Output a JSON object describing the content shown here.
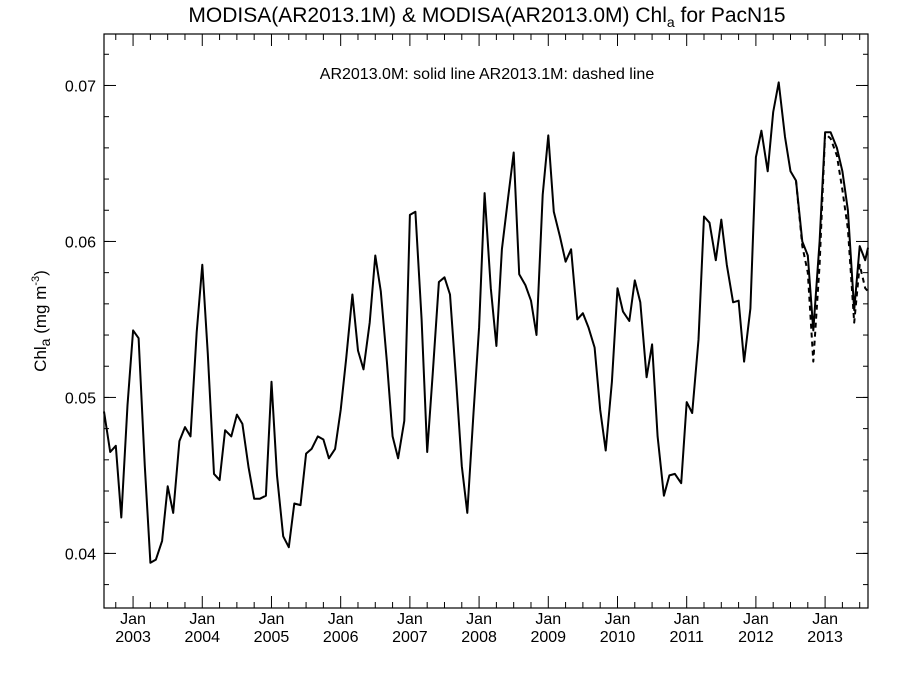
{
  "chart_data": {
    "type": "line",
    "title": {
      "main": "MODISA(AR2013.1M) & MODISA(AR2013.0M)  Chl",
      "sub": "a",
      "tail": " for PacN15"
    },
    "annotation": "AR2013.0M: solid line   AR2013.1M: dashed line",
    "ylabel": {
      "main": "Chl",
      "sub": "a",
      "unit_open": " (mg m",
      "sup": "-3",
      "unit_close": ")"
    },
    "xlim": [
      2002.58,
      2013.62
    ],
    "ylim": [
      0.0365,
      0.0733
    ],
    "x_ticks": [
      {
        "x": 2003,
        "month": "Jan",
        "year": "2003"
      },
      {
        "x": 2004,
        "month": "Jan",
        "year": "2004"
      },
      {
        "x": 2005,
        "month": "Jan",
        "year": "2005"
      },
      {
        "x": 2006,
        "month": "Jan",
        "year": "2006"
      },
      {
        "x": 2007,
        "month": "Jan",
        "year": "2007"
      },
      {
        "x": 2008,
        "month": "Jan",
        "year": "2008"
      },
      {
        "x": 2009,
        "month": "Jan",
        "year": "2009"
      },
      {
        "x": 2010,
        "month": "Jan",
        "year": "2010"
      },
      {
        "x": 2011,
        "month": "Jan",
        "year": "2011"
      },
      {
        "x": 2012,
        "month": "Jan",
        "year": "2012"
      },
      {
        "x": 2013,
        "month": "Jan",
        "year": "2013"
      }
    ],
    "y_ticks": [
      {
        "value": 0.04,
        "label": "0.04"
      },
      {
        "value": 0.05,
        "label": "0.05"
      },
      {
        "value": 0.06,
        "label": "0.06"
      },
      {
        "value": 0.07,
        "label": "0.07"
      }
    ],
    "series": [
      {
        "style": "solid",
        "color": "#000000",
        "points": [
          [
            2002.58,
            0.0491
          ],
          [
            2002.67,
            0.0465
          ],
          [
            2002.75,
            0.0469
          ],
          [
            2002.83,
            0.0423
          ],
          [
            2002.92,
            0.0495
          ],
          [
            2003.0,
            0.0543
          ],
          [
            2003.08,
            0.0538
          ],
          [
            2003.17,
            0.0456
          ],
          [
            2003.25,
            0.0394
          ],
          [
            2003.33,
            0.0396
          ],
          [
            2003.42,
            0.0408
          ],
          [
            2003.5,
            0.0443
          ],
          [
            2003.58,
            0.0426
          ],
          [
            2003.67,
            0.0472
          ],
          [
            2003.75,
            0.0481
          ],
          [
            2003.83,
            0.0475
          ],
          [
            2003.92,
            0.0542
          ],
          [
            2004.0,
            0.0585
          ],
          [
            2004.08,
            0.0528
          ],
          [
            2004.17,
            0.0451
          ],
          [
            2004.25,
            0.0447
          ],
          [
            2004.33,
            0.0479
          ],
          [
            2004.42,
            0.0475
          ],
          [
            2004.5,
            0.0489
          ],
          [
            2004.58,
            0.0483
          ],
          [
            2004.67,
            0.0455
          ],
          [
            2004.75,
            0.0435
          ],
          [
            2004.83,
            0.0435
          ],
          [
            2004.92,
            0.0437
          ],
          [
            2005.0,
            0.051
          ],
          [
            2005.08,
            0.045
          ],
          [
            2005.17,
            0.0411
          ],
          [
            2005.25,
            0.0404
          ],
          [
            2005.33,
            0.0432
          ],
          [
            2005.42,
            0.0431
          ],
          [
            2005.5,
            0.0464
          ],
          [
            2005.58,
            0.0467
          ],
          [
            2005.67,
            0.0475
          ],
          [
            2005.75,
            0.0473
          ],
          [
            2005.83,
            0.0461
          ],
          [
            2005.92,
            0.0467
          ],
          [
            2006.0,
            0.0492
          ],
          [
            2006.08,
            0.0525
          ],
          [
            2006.17,
            0.0566
          ],
          [
            2006.25,
            0.053
          ],
          [
            2006.33,
            0.0518
          ],
          [
            2006.42,
            0.0548
          ],
          [
            2006.5,
            0.0591
          ],
          [
            2006.58,
            0.0568
          ],
          [
            2006.67,
            0.0522
          ],
          [
            2006.75,
            0.0475
          ],
          [
            2006.83,
            0.0461
          ],
          [
            2006.92,
            0.0485
          ],
          [
            2007.0,
            0.0617
          ],
          [
            2007.08,
            0.0619
          ],
          [
            2007.17,
            0.055
          ],
          [
            2007.25,
            0.0465
          ],
          [
            2007.33,
            0.0515
          ],
          [
            2007.42,
            0.0574
          ],
          [
            2007.5,
            0.0577
          ],
          [
            2007.58,
            0.0566
          ],
          [
            2007.67,
            0.051
          ],
          [
            2007.75,
            0.0456
          ],
          [
            2007.83,
            0.0426
          ],
          [
            2007.92,
            0.049
          ],
          [
            2008.0,
            0.0545
          ],
          [
            2008.08,
            0.0631
          ],
          [
            2008.17,
            0.057
          ],
          [
            2008.25,
            0.0533
          ],
          [
            2008.33,
            0.0595
          ],
          [
            2008.42,
            0.0628
          ],
          [
            2008.5,
            0.0657
          ],
          [
            2008.58,
            0.0579
          ],
          [
            2008.67,
            0.0572
          ],
          [
            2008.75,
            0.0562
          ],
          [
            2008.83,
            0.054
          ],
          [
            2008.92,
            0.063
          ],
          [
            2009.0,
            0.0668
          ],
          [
            2009.08,
            0.0619
          ],
          [
            2009.17,
            0.0603
          ],
          [
            2009.25,
            0.0587
          ],
          [
            2009.33,
            0.0595
          ],
          [
            2009.42,
            0.055
          ],
          [
            2009.5,
            0.0554
          ],
          [
            2009.58,
            0.0545
          ],
          [
            2009.67,
            0.0532
          ],
          [
            2009.75,
            0.0492
          ],
          [
            2009.83,
            0.0466
          ],
          [
            2009.92,
            0.051
          ],
          [
            2010.0,
            0.057
          ],
          [
            2010.08,
            0.0555
          ],
          [
            2010.17,
            0.0549
          ],
          [
            2010.25,
            0.0575
          ],
          [
            2010.33,
            0.0561
          ],
          [
            2010.42,
            0.0513
          ],
          [
            2010.5,
            0.0534
          ],
          [
            2010.58,
            0.0475
          ],
          [
            2010.67,
            0.0437
          ],
          [
            2010.75,
            0.045
          ],
          [
            2010.83,
            0.0451
          ],
          [
            2010.92,
            0.0445
          ],
          [
            2011.0,
            0.0497
          ],
          [
            2011.08,
            0.049
          ],
          [
            2011.17,
            0.0537
          ],
          [
            2011.25,
            0.0616
          ],
          [
            2011.33,
            0.0612
          ],
          [
            2011.42,
            0.0588
          ],
          [
            2011.5,
            0.0614
          ],
          [
            2011.58,
            0.0585
          ],
          [
            2011.67,
            0.0561
          ],
          [
            2011.75,
            0.0562
          ],
          [
            2011.83,
            0.0523
          ],
          [
            2011.92,
            0.0557
          ],
          [
            2012.0,
            0.0654
          ],
          [
            2012.08,
            0.0671
          ],
          [
            2012.17,
            0.0645
          ],
          [
            2012.25,
            0.0683
          ],
          [
            2012.33,
            0.0702
          ],
          [
            2012.42,
            0.0667
          ],
          [
            2012.5,
            0.0645
          ],
          [
            2012.58,
            0.0639
          ],
          [
            2012.67,
            0.06
          ],
          [
            2012.75,
            0.0591
          ],
          [
            2012.83,
            0.0543
          ],
          [
            2012.92,
            0.06
          ],
          [
            2013.0,
            0.067
          ],
          [
            2013.08,
            0.067
          ],
          [
            2013.17,
            0.066
          ],
          [
            2013.25,
            0.0645
          ],
          [
            2013.33,
            0.062
          ],
          [
            2013.42,
            0.0556
          ],
          [
            2013.5,
            0.0597
          ],
          [
            2013.58,
            0.0588
          ],
          [
            2013.62,
            0.0596
          ]
        ]
      },
      {
        "style": "dashed",
        "color": "#000000",
        "points": [
          [
            2012.58,
            0.0639
          ],
          [
            2012.67,
            0.0597
          ],
          [
            2012.75,
            0.058
          ],
          [
            2012.83,
            0.0523
          ],
          [
            2012.92,
            0.0585
          ],
          [
            2013.0,
            0.0669
          ],
          [
            2013.08,
            0.0666
          ],
          [
            2013.17,
            0.0655
          ],
          [
            2013.25,
            0.0633
          ],
          [
            2013.33,
            0.0608
          ],
          [
            2013.42,
            0.0548
          ],
          [
            2013.5,
            0.0585
          ],
          [
            2013.58,
            0.057
          ],
          [
            2013.62,
            0.0568
          ]
        ]
      }
    ]
  }
}
